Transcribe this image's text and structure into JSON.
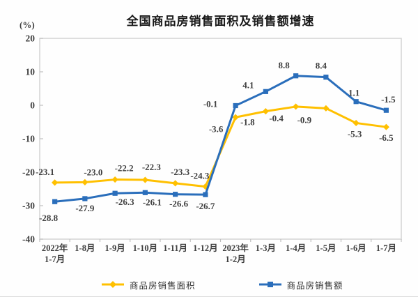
{
  "chart": {
    "title": "全国商品房销售面积及销售额增速",
    "unit_label": "(%)"
  },
  "legend": {
    "items": [
      {
        "label": "商品房销售面积"
      },
      {
        "label": "商品房销售额"
      }
    ]
  },
  "chart_data": {
    "type": "line",
    "title": "全国商品房销售面积及销售额增速",
    "unit_label": "(%)",
    "categories": [
      "2022年\n1-7月",
      "1-8月",
      "1-9月",
      "1-10月",
      "1-11月",
      "1-12月",
      "2023年\n1-2月",
      "1-3月",
      "1-4月",
      "1-5月",
      "1-6月",
      "1-7月"
    ],
    "series": [
      {
        "name": "商品房销售面积",
        "color": "#FFC000",
        "marker": "diamond",
        "values": [
          -23.1,
          -23.0,
          -22.2,
          -22.3,
          -23.3,
          -24.3,
          -3.6,
          -1.8,
          -0.4,
          -0.9,
          -5.3,
          -6.5
        ],
        "label_offsets": [
          [
            -14,
            -15
          ],
          [
            12,
            -14
          ],
          [
            13,
            -16
          ],
          [
            9,
            -18
          ],
          [
            7,
            -16
          ],
          [
            -8,
            -15
          ],
          [
            -28,
            17
          ],
          [
            -26,
            16
          ],
          [
            -28,
            17
          ],
          [
            -31,
            17
          ],
          [
            -2,
            16
          ],
          [
            0,
            16
          ]
        ]
      },
      {
        "name": "商品房销售额",
        "color": "#2A6EBB",
        "marker": "square",
        "values": [
          -28.8,
          -27.9,
          -26.3,
          -26.1,
          -26.6,
          -26.7,
          -0.1,
          4.1,
          8.8,
          8.4,
          1.1,
          -1.5
        ],
        "label_offsets": [
          [
            -9,
            24
          ],
          [
            0,
            14
          ],
          [
            14,
            13
          ],
          [
            10,
            14
          ],
          [
            5,
            14
          ],
          [
            0,
            17
          ],
          [
            -36,
            -2
          ],
          [
            -25,
            -9
          ],
          [
            -17,
            -15
          ],
          [
            -7,
            -16
          ],
          [
            -3,
            -12
          ],
          [
            3,
            -15
          ]
        ]
      }
    ],
    "ylim": [
      -40,
      20
    ],
    "ytick_interval": 10,
    "yticks": [
      20,
      10,
      0,
      -10,
      -20,
      -30,
      -40
    ],
    "grid": false,
    "legend_position": "bottom",
    "axis_color": "#d6d6d6",
    "tick_color": "#c0c0c0",
    "label_color": "#3f3f3f"
  }
}
